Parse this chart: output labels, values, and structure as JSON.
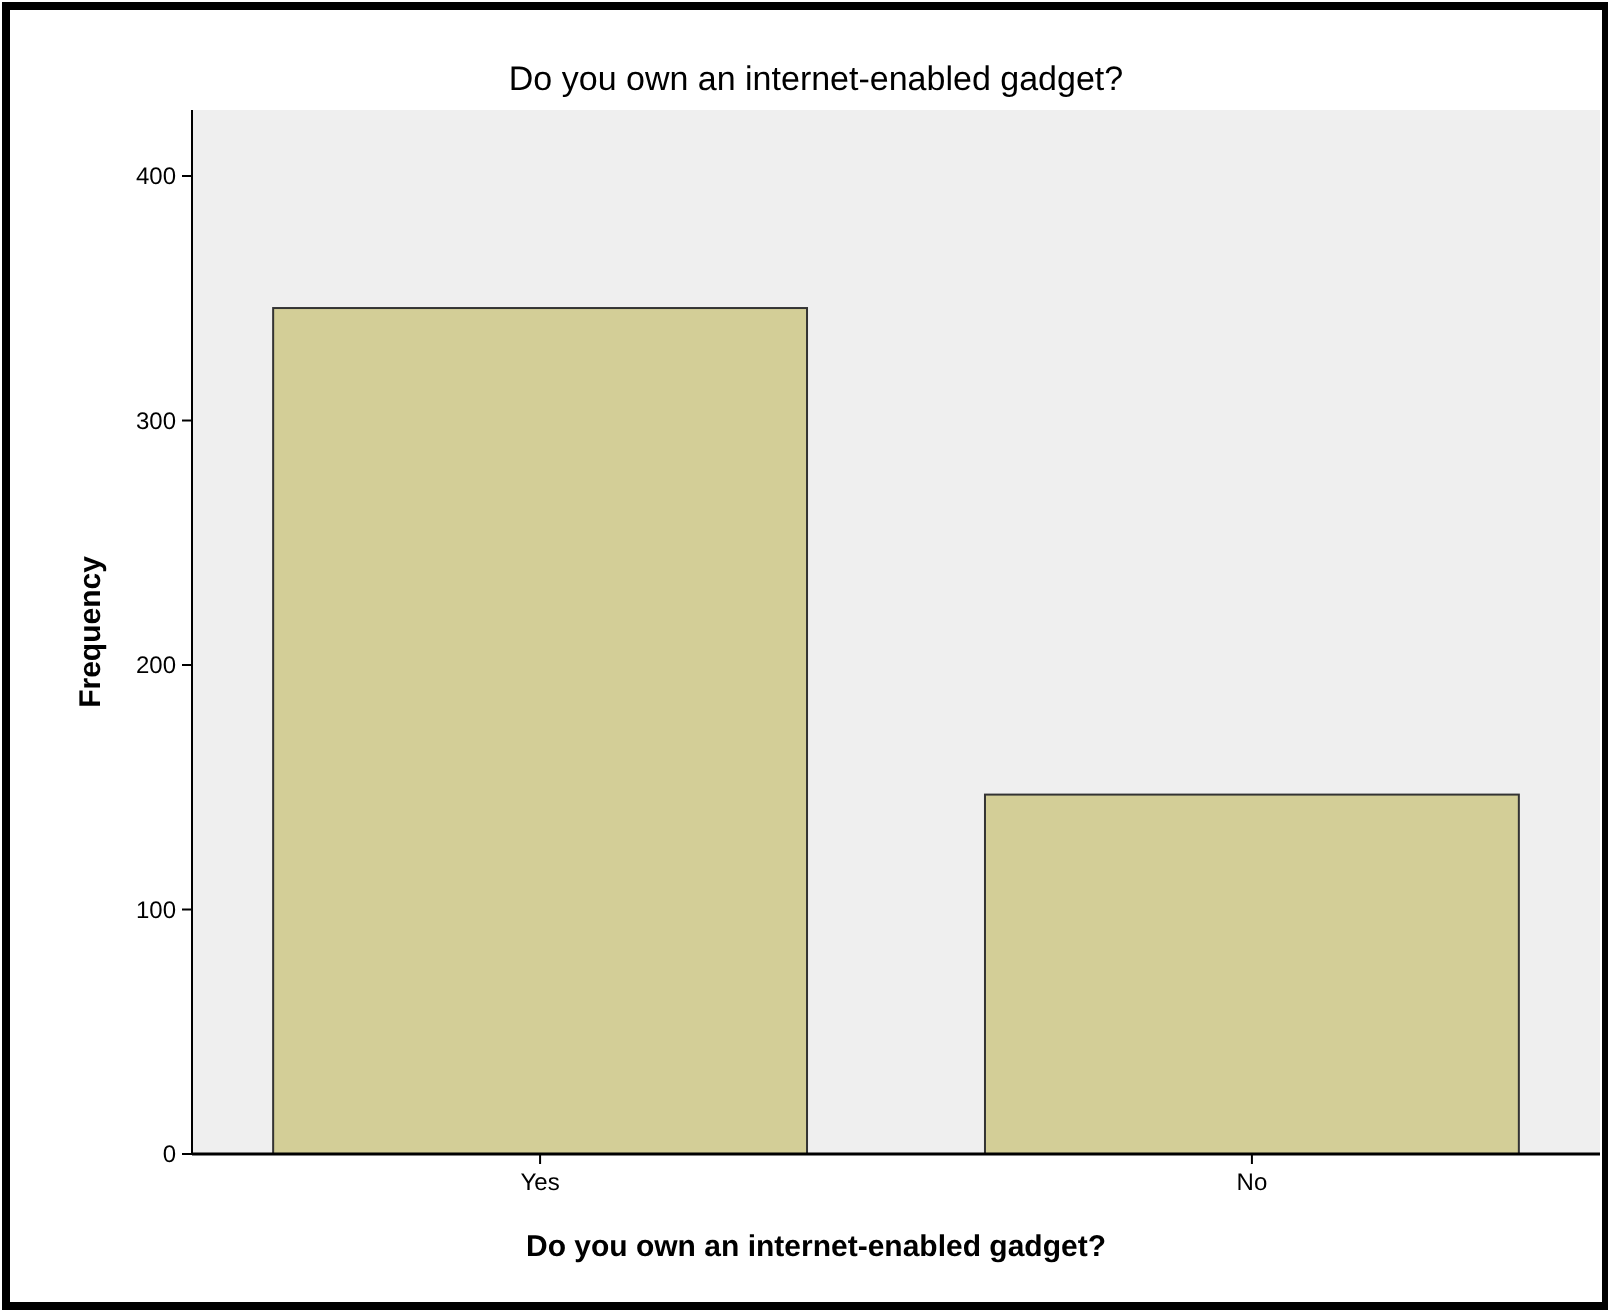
{
  "chart_data": {
    "type": "bar",
    "title": "Do you own an internet-enabled gadget?",
    "xlabel": "Do you own an internet-enabled gadget?",
    "ylabel": "Frequency",
    "categories": [
      "Yes",
      "No"
    ],
    "values": [
      346,
      147
    ],
    "color": "#d3ce97",
    "ylim": [
      0,
      427
    ],
    "yticks": [
      0,
      100,
      200,
      300,
      400
    ],
    "grid": false
  }
}
